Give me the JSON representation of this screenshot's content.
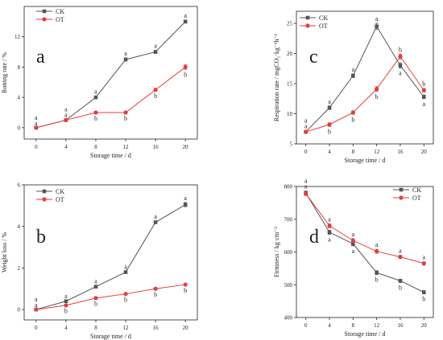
{
  "chart_data": [
    {
      "id": "a",
      "type": "line",
      "panel_label": "a",
      "xlabel": "Storage time / d",
      "ylabel": "Rotting rate / %",
      "x": [
        0,
        4,
        8,
        12,
        16,
        20
      ],
      "xticks": [
        "0",
        "4",
        "8",
        "12",
        "16",
        "20"
      ],
      "ylim": [
        -1.5,
        16
      ],
      "yticks": [
        0,
        4,
        8,
        12
      ],
      "ytick_labels": [
        "0",
        "4",
        "8",
        "12"
      ],
      "legend_loc": "top-left",
      "series": [
        {
          "name": "CK",
          "color": "#555555",
          "marker": "square",
          "values": [
            0,
            1.0,
            4.0,
            9.0,
            10.0,
            14.0
          ],
          "errors": [
            0,
            0.1,
            0.15,
            0.2,
            0.2,
            0.2
          ],
          "labels": [
            "a",
            "a",
            "a",
            "a",
            "a",
            "a"
          ]
        },
        {
          "name": "OT",
          "color": "#e63c3c",
          "marker": "circle",
          "values": [
            0,
            1.0,
            2.0,
            2.0,
            5.0,
            8.0
          ],
          "errors": [
            0,
            0.1,
            0.1,
            0.1,
            0.15,
            0.3
          ],
          "labels": [
            "a",
            "a",
            "b",
            "b",
            "b",
            "b"
          ]
        }
      ]
    },
    {
      "id": "b",
      "type": "line",
      "panel_label": "b",
      "xlabel": "Storage time / d",
      "ylabel": "Weight loss / %",
      "x": [
        0,
        4,
        8,
        12,
        16,
        20
      ],
      "xticks": [
        "0",
        "4",
        "8",
        "12",
        "16",
        "20"
      ],
      "ylim": [
        -0.5,
        6
      ],
      "yticks": [
        0,
        2,
        4,
        6
      ],
      "ytick_labels": [
        "0",
        "2",
        "4",
        "6"
      ],
      "legend_loc": "top-left",
      "series": [
        {
          "name": "CK",
          "color": "#555555",
          "marker": "square",
          "values": [
            0,
            0.4,
            1.1,
            1.8,
            4.2,
            5.05
          ],
          "errors": [
            0,
            0.03,
            0.04,
            0.05,
            0.05,
            0.1
          ],
          "labels": [
            "a",
            "a",
            "a",
            "a",
            "a",
            "a"
          ]
        },
        {
          "name": "OT",
          "color": "#e63c3c",
          "marker": "circle",
          "values": [
            0,
            0.2,
            0.55,
            0.75,
            1.0,
            1.2
          ],
          "errors": [
            0,
            0.02,
            0.03,
            0.03,
            0.03,
            0.04
          ],
          "labels": [
            "a",
            "b",
            "b",
            "b",
            "b",
            "b"
          ]
        }
      ]
    },
    {
      "id": "c",
      "type": "line",
      "panel_label": "c",
      "xlabel": "Storage time / d",
      "ylabel": "Respiration rate / mgCO₂·kg⁻¹h⁻¹",
      "x": [
        0,
        4,
        8,
        12,
        16,
        20
      ],
      "xticks": [
        "0",
        "4",
        "8",
        "12",
        "16",
        "20"
      ],
      "ylim": [
        5,
        27
      ],
      "yticks": [
        5,
        10,
        15,
        20,
        25
      ],
      "ytick_labels": [
        "5",
        "10",
        "15",
        "20",
        "25"
      ],
      "legend_loc": "top-left",
      "series": [
        {
          "name": "CK",
          "color": "#555555",
          "marker": "square",
          "values": [
            7.0,
            11.0,
            16.3,
            24.5,
            18.0,
            12.8
          ],
          "errors": [
            0.2,
            0.3,
            0.3,
            0.5,
            0.4,
            0.3
          ],
          "labels": [
            "a",
            "a",
            "a",
            "a",
            "a",
            "a"
          ]
        },
        {
          "name": "OT",
          "color": "#e63c3c",
          "marker": "circle",
          "values": [
            7.0,
            8.2,
            10.2,
            14.1,
            19.5,
            13.9
          ],
          "errors": [
            0.2,
            0.3,
            0.3,
            0.4,
            0.4,
            0.3
          ],
          "labels": [
            "a",
            "b",
            "b",
            "b",
            "b",
            "b"
          ]
        }
      ]
    },
    {
      "id": "d",
      "type": "line",
      "panel_label": "d",
      "xlabel": "Storage time / d",
      "ylabel": "Firmness / kg·cm⁻²",
      "x": [
        0,
        4,
        8,
        12,
        16,
        20
      ],
      "xticks": [
        "0",
        "4",
        "8",
        "12",
        "16",
        "20"
      ],
      "ylim": [
        400,
        800
      ],
      "yticks": [
        400,
        500,
        600,
        700,
        800
      ],
      "ytick_labels": [
        "400",
        "500",
        "600",
        "700",
        "800"
      ],
      "legend_loc": "top-right",
      "series": [
        {
          "name": "CK",
          "color": "#555555",
          "marker": "square",
          "values": [
            780,
            660,
            625,
            537,
            512,
            477
          ],
          "errors": [
            6,
            6,
            6,
            6,
            5,
            5
          ],
          "labels": [
            "a",
            "a",
            "a",
            "b",
            "b",
            "b"
          ]
        },
        {
          "name": "OT",
          "color": "#e63c3c",
          "marker": "circle",
          "values": [
            778,
            680,
            635,
            602,
            585,
            565
          ],
          "errors": [
            6,
            6,
            6,
            6,
            5,
            5
          ],
          "labels": [
            "a",
            "a",
            "a",
            "a",
            "a",
            "a"
          ]
        }
      ]
    }
  ]
}
